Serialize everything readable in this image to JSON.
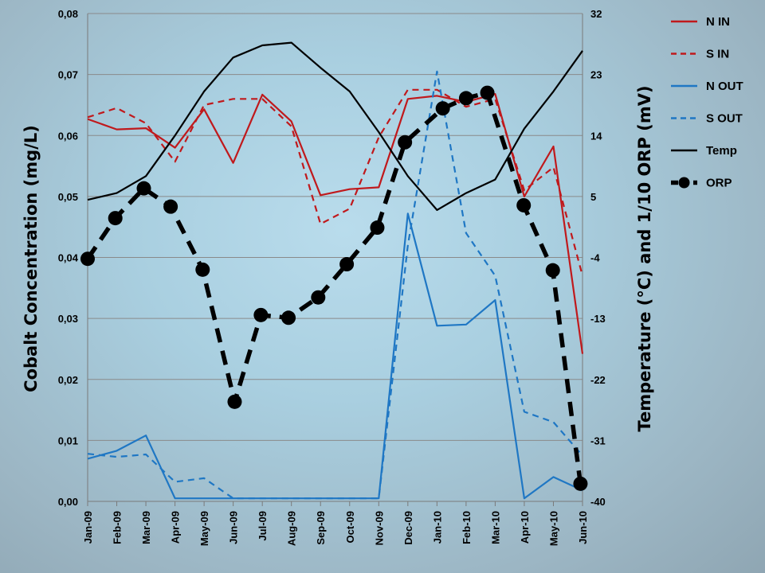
{
  "chart_data": {
    "type": "line",
    "categories": [
      "Jan-09",
      "Feb-09",
      "Mar-09",
      "Apr-09",
      "May-09",
      "Jun-09",
      "Jul-09",
      "Aug-09",
      "Sep-09",
      "Oct-09",
      "Nov-09",
      "Dec-09",
      "Jan-10",
      "Feb-10",
      "Mar-10",
      "Apr-10",
      "May-10",
      "Jun-10"
    ],
    "y_left": {
      "label": "Cobalt Concentration (mg/L)",
      "min": 0,
      "max": 0.08,
      "ticks": [
        "0,00",
        "0,01",
        "0,02",
        "0,03",
        "0,04",
        "0,05",
        "0,06",
        "0,07",
        "0,08"
      ]
    },
    "y_right": {
      "label": "Temperature (°C) and 1/10 ORP (mV)",
      "min": -40,
      "max": 32,
      "ticks": [
        "-40",
        "-31",
        "-22",
        "-13",
        "-4",
        "5",
        "14",
        "23",
        "32"
      ]
    },
    "series": [
      {
        "name": "N IN",
        "axis": "left",
        "color": "#c0191c",
        "style": "solid",
        "marker": "none",
        "x": [
          0,
          1,
          2,
          3,
          4,
          5,
          6,
          7,
          8,
          9,
          10,
          11,
          12,
          13,
          14,
          15,
          16,
          17
        ],
        "values": [
          0.0627,
          0.061,
          0.0612,
          0.058,
          0.0643,
          0.0555,
          0.0667,
          0.0623,
          0.0502,
          0.0512,
          0.0515,
          0.066,
          0.0665,
          0.0655,
          0.0668,
          0.05,
          0.0582,
          0.0242
        ]
      },
      {
        "name": "S IN",
        "axis": "left",
        "color": "#c0191c",
        "style": "dashed",
        "marker": "none",
        "x": [
          0,
          1,
          2,
          3,
          4,
          5,
          6,
          7,
          8,
          9,
          10,
          11,
          12,
          13,
          14,
          15,
          16,
          17
        ],
        "values": [
          0.063,
          0.0645,
          0.062,
          0.0557,
          0.065,
          0.066,
          0.066,
          0.0615,
          0.0455,
          0.048,
          0.0597,
          0.0675,
          0.0675,
          0.0647,
          0.066,
          0.051,
          0.0548,
          0.037
        ]
      },
      {
        "name": "N OUT",
        "axis": "left",
        "color": "#1f77c4",
        "style": "solid",
        "marker": "none",
        "x": [
          0,
          1,
          2,
          3,
          4,
          5,
          6,
          7,
          8,
          9,
          10,
          11,
          12,
          13,
          14,
          15,
          16,
          17
        ],
        "values": [
          0.007,
          0.0083,
          0.0108,
          0.0005,
          0.0005,
          0.0005,
          0.0005,
          0.0005,
          0.0005,
          0.0005,
          0.0005,
          0.0472,
          0.0288,
          0.029,
          0.033,
          0.0005,
          0.004,
          0.0018
        ]
      },
      {
        "name": "S OUT",
        "axis": "left",
        "color": "#1f77c4",
        "style": "dashed",
        "marker": "none",
        "x": [
          0,
          1,
          2,
          3,
          4,
          5,
          6,
          7,
          8,
          9,
          10,
          11,
          12,
          13,
          14,
          15,
          16,
          17
        ],
        "values": [
          0.0078,
          0.0073,
          0.0077,
          0.0032,
          0.0038,
          0.0005,
          0.0005,
          0.0005,
          0.0005,
          0.0005,
          0.0005,
          0.042,
          0.0705,
          0.044,
          0.037,
          0.0147,
          0.013,
          0.0075
        ]
      },
      {
        "name": "Temp",
        "axis": "right",
        "color": "#000000",
        "style": "solid",
        "marker": "none",
        "x": [
          0,
          1,
          2,
          3,
          4,
          5,
          6,
          7,
          8,
          9,
          10,
          11,
          12,
          13,
          14,
          15,
          16,
          17
        ],
        "values": [
          4.5,
          5.5,
          8,
          14,
          20.5,
          25.5,
          27.3,
          27.7,
          24,
          20.5,
          14.5,
          8,
          3,
          5.5,
          7.5,
          15,
          20.5,
          26.5
        ]
      },
      {
        "name": "ORP",
        "axis": "right",
        "color": "#000000",
        "style": "dashed",
        "marker": "circle",
        "x": [
          0,
          0.95,
          1.93,
          2.85,
          3.95,
          5.05,
          5.95,
          6.9,
          7.92,
          8.9,
          9.95,
          10.9,
          12.2,
          13.0,
          13.73,
          14.98,
          15.98,
          16.93
        ],
        "values": [
          -4.2,
          1.8,
          6.2,
          3.5,
          -5.8,
          -25.3,
          -12.5,
          -12.9,
          -9.9,
          -5,
          0.4,
          13,
          18,
          19.5,
          20.3,
          3.7,
          -5.9,
          -37.4
        ]
      }
    ]
  }
}
